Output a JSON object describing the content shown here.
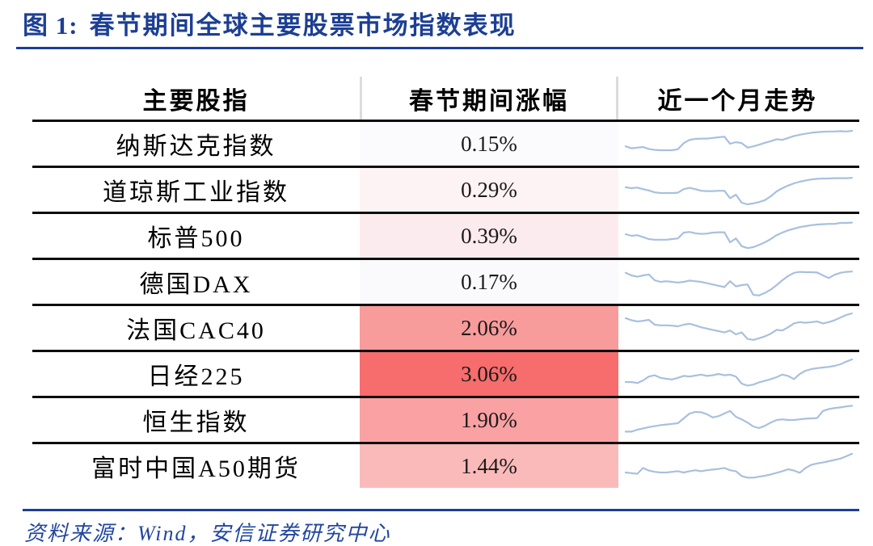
{
  "figure": {
    "label": "图 1:",
    "title": "春节期间全球主要股票市场指数表现"
  },
  "table": {
    "headers": [
      "主要股指",
      "春节期间涨幅",
      "近一个月走势"
    ]
  },
  "source": {
    "text": "资料来源：Wind，安信证券研究中心"
  },
  "colors": {
    "accent_navy": "#1c3f94",
    "sparkline_blue": "#a8c0de",
    "row_line_black": "#0d0d0d",
    "header_divider_gray": "#dcdcdc"
  },
  "chart_data": {
    "type": "table",
    "title": "春节期间全球主要股票市场指数表现",
    "columns": [
      "主要股指",
      "春节期间涨幅",
      "近一个月走势"
    ],
    "heat_column": "春节期间涨幅",
    "rows": [
      {
        "name": "纳斯达克指数",
        "change_pct": 0.15,
        "change_label": "0.15%",
        "cell_bg": "#fbfafd",
        "sparkline": [
          42,
          36,
          38,
          40,
          34,
          31,
          30,
          30,
          30,
          33,
          52,
          62,
          65,
          66,
          66,
          68,
          70,
          72,
          50,
          55,
          52,
          38,
          42,
          47,
          53,
          58,
          64,
          62,
          68,
          74,
          78,
          81,
          84,
          86,
          87,
          88,
          88,
          89,
          88,
          90
        ]
      },
      {
        "name": "道琼斯工业指数",
        "change_pct": 0.29,
        "change_label": "0.29%",
        "cell_bg": "#fdf3f5",
        "sparkline": [
          58,
          55,
          57,
          52,
          48,
          42,
          40,
          40,
          40,
          41,
          52,
          56,
          52,
          47,
          46,
          46,
          47,
          47,
          24,
          35,
          10,
          5,
          8,
          12,
          18,
          30,
          45,
          55,
          63,
          70,
          75,
          79,
          82,
          84,
          85,
          85,
          86,
          86,
          86,
          87
        ]
      },
      {
        "name": "标普500",
        "change_pct": 0.39,
        "change_label": "0.39%",
        "cell_bg": "#fcebee",
        "sparkline": [
          55,
          50,
          52,
          46,
          40,
          38,
          38,
          38,
          40,
          42,
          60,
          62,
          58,
          56,
          57,
          60,
          61,
          61,
          30,
          42,
          18,
          12,
          15,
          22,
          30,
          40,
          52,
          60,
          67,
          72,
          77,
          80,
          83,
          85,
          86,
          87,
          87,
          90,
          90,
          91
        ]
      },
      {
        "name": "德国DAX",
        "change_pct": 0.17,
        "change_label": "0.17%",
        "cell_bg": "#fafafd",
        "sparkline": [
          78,
          70,
          66,
          70,
          73,
          55,
          50,
          52,
          50,
          48,
          50,
          54,
          52,
          50,
          46,
          42,
          38,
          34,
          52,
          36,
          40,
          42,
          10,
          8,
          16,
          26,
          40,
          55,
          68,
          78,
          81,
          80,
          80,
          79,
          70,
          62,
          72,
          78,
          81,
          82
        ]
      },
      {
        "name": "法国CAC40",
        "change_pct": 2.06,
        "change_label": "2.06%",
        "cell_bg": "#f89b9b",
        "sparkline": [
          80,
          74,
          70,
          72,
          75,
          60,
          58,
          58,
          57,
          55,
          60,
          63,
          58,
          52,
          48,
          44,
          40,
          36,
          42,
          30,
          36,
          16,
          13,
          18,
          24,
          32,
          44,
          42,
          52,
          64,
          68,
          66,
          68,
          70,
          64,
          68,
          74,
          82,
          90,
          95
        ]
      },
      {
        "name": "日经225",
        "change_pct": 3.06,
        "change_label": "3.06%",
        "cell_bg": "#f76c6c",
        "sparkline": [
          25,
          25,
          22,
          30,
          42,
          46,
          38,
          35,
          33,
          38,
          44,
          42,
          45,
          48,
          44,
          46,
          50,
          46,
          48,
          42,
          20,
          14,
          17,
          24,
          29,
          34,
          40,
          48,
          44,
          34,
          50,
          60,
          65,
          68,
          70,
          72,
          75,
          80,
          88,
          95
        ]
      },
      {
        "name": "恒生指数",
        "change_pct": 1.9,
        "change_label": "1.90%",
        "cell_bg": "#f9a1a3",
        "sparkline": [
          14,
          14,
          20,
          24,
          28,
          31,
          34,
          36,
          38,
          40,
          55,
          70,
          75,
          74,
          68,
          58,
          62,
          70,
          78,
          60,
          52,
          42,
          30,
          25,
          32,
          42,
          50,
          52,
          50,
          50,
          52,
          54,
          55,
          56,
          78,
          84,
          87,
          89,
          92,
          94
        ]
      },
      {
        "name": "富时中国A50期货",
        "change_pct": 1.44,
        "change_label": "1.44%",
        "cell_bg": "#fbbaba",
        "sparkline": [
          30,
          28,
          26,
          44,
          36,
          32,
          30,
          30,
          32,
          34,
          30,
          34,
          37,
          34,
          37,
          39,
          41,
          44,
          37,
          34,
          19,
          14,
          14,
          17,
          20,
          24,
          29,
          34,
          40,
          36,
          29,
          44,
          54,
          58,
          61,
          65,
          69,
          73,
          80,
          88
        ]
      }
    ]
  }
}
